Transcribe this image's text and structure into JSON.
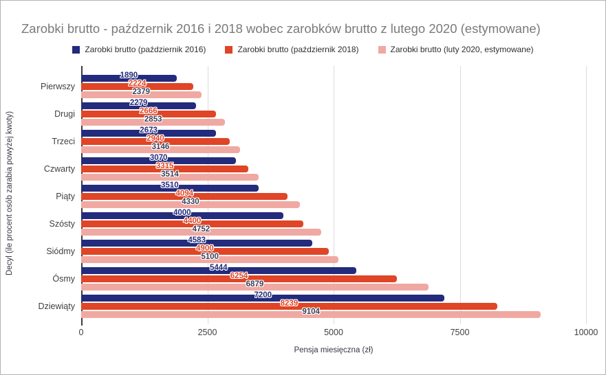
{
  "chart_data": {
    "type": "bar",
    "orientation": "horizontal",
    "title": "Zarobki brutto - paźdzernik 2016 i 2018 wobec zarobków brutto z lutego 2020 (estymowane)",
    "xlabel": "Pensja miesięczna (zł)",
    "ylabel": "Decyl (ile procent osób zarabia powyżej kwoty)",
    "categories": [
      "Pierwszy",
      "Drugi",
      "Trzeci",
      "Czwarty",
      "Piąty",
      "Szósty",
      "Siódmy",
      "Ósmy",
      "Dziewiąty"
    ],
    "series": [
      {
        "name": "Zarobki brutto (październik 2016)",
        "color": "#232b7c",
        "label_color": "#232b7c",
        "values": [
          1890,
          2279,
          2673,
          3070,
          3510,
          4000,
          4583,
          5444,
          7200
        ]
      },
      {
        "name": "Zarobki brutto (październik 2018)",
        "color": "#df4526",
        "label_color": "#df4526",
        "values": [
          2224,
          2666,
          2940,
          3315,
          4094,
          4400,
          4900,
          6254,
          8239
        ]
      },
      {
        "name": "Zarobki brutto (luty 2020, estymowane)",
        "color": "#f0a9a2",
        "label_color": "#3d3d55",
        "values": [
          2379,
          2853,
          3146,
          3514,
          4330,
          4752,
          5100,
          6879,
          9104
        ]
      }
    ],
    "x_ticks": [
      0,
      2500,
      5000,
      7500,
      10000
    ],
    "xlim": [
      0,
      10000
    ],
    "grid": true,
    "legend_position": "top",
    "colors": {
      "grid": "#dcdcdc",
      "axis_line": "#3b3b3b",
      "title_text": "#7a7a7a",
      "axis_text": "#3f3f3f"
    }
  }
}
